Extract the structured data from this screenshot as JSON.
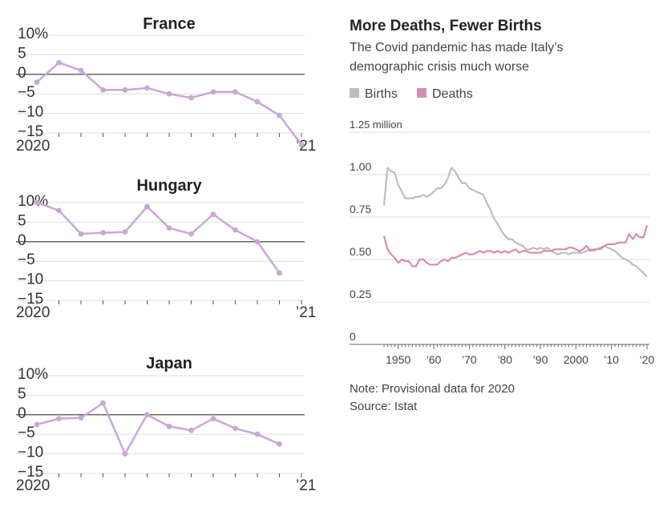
{
  "small_multiples": [
    {
      "title": "France",
      "y_ticks": [
        "10%",
        "5",
        "0",
        "−5",
        "−10",
        "−15"
      ],
      "x_start_label": "2020",
      "x_end_label": "’21"
    },
    {
      "title": "Hungary",
      "y_ticks": [
        "10%",
        "5",
        "0",
        "−5",
        "−10",
        "−15"
      ],
      "x_start_label": "2020",
      "x_end_label": "’21"
    },
    {
      "title": "Japan",
      "y_ticks": [
        "10%",
        "5",
        "0",
        "−5",
        "−10",
        "−15"
      ],
      "x_start_label": "2020",
      "x_end_label": "’21"
    }
  ],
  "main": {
    "title": "More Deaths, Fewer Births",
    "subtitle_line1": "The Covid pandemic has made Italy’s",
    "subtitle_line2": "demographic crisis much worse",
    "legend": [
      {
        "label": "Births",
        "color": "#bdbdbd"
      },
      {
        "label": "Deaths",
        "color": "#d98bb3"
      }
    ],
    "y_ticks": [
      "1.25 million",
      "1.00",
      "0.75",
      "0.50",
      "0.25",
      "0"
    ],
    "x_ticks": [
      "1950",
      "’60",
      "’70",
      "’80",
      "’90",
      "2000",
      "’10",
      "’20"
    ],
    "note": "Note: Provisional data for 2020",
    "source": "Source: Istat"
  },
  "colors": {
    "small_line": "#c9a8d8",
    "births": "#bdbdbd",
    "deaths": "#d98bb3",
    "grid": "#dddddd",
    "zero_line": "#333333"
  },
  "chart_data": [
    {
      "type": "line",
      "title": "France",
      "ylim": [
        -15,
        10
      ],
      "x_range": [
        "2020",
        "’21"
      ],
      "series": [
        {
          "values": [
            -2,
            3,
            1,
            -4,
            -4,
            -3.5,
            -5,
            -6,
            -4.5,
            -4.5,
            -7,
            -10.5,
            -18
          ]
        }
      ]
    },
    {
      "type": "line",
      "title": "Hungary",
      "ylim": [
        -15,
        10
      ],
      "x_range": [
        "2020",
        "’21"
      ],
      "series": [
        {
          "values": [
            10,
            8,
            2,
            2.3,
            2.5,
            9,
            3.5,
            2,
            7,
            3,
            0,
            -8
          ]
        }
      ]
    },
    {
      "type": "line",
      "title": "Japan",
      "ylim": [
        -15,
        10
      ],
      "x_range": [
        "2020",
        "’21"
      ],
      "series": [
        {
          "values": [
            -2.5,
            -1,
            -0.8,
            3,
            -10,
            0,
            -3,
            -4,
            -1,
            -3.5,
            -5,
            -7.5
          ]
        }
      ]
    },
    {
      "type": "line",
      "title": "More Deaths, Fewer Births",
      "subtitle": "The Covid pandemic has made Italy’s demographic crisis much worse",
      "ylim": [
        0,
        1.25
      ],
      "x_ticks": [
        1950,
        1960,
        1970,
        1980,
        1990,
        2000,
        2010,
        2020
      ],
      "series": [
        {
          "name": "Births",
          "x": [
            1946,
            1947,
            1948,
            1949,
            1950,
            1951,
            1952,
            1953,
            1954,
            1955,
            1956,
            1957,
            1958,
            1959,
            1960,
            1961,
            1962,
            1963,
            1964,
            1965,
            1966,
            1967,
            1968,
            1969,
            1970,
            1971,
            1972,
            1973,
            1974,
            1975,
            1976,
            1977,
            1978,
            1979,
            1980,
            1981,
            1982,
            1983,
            1984,
            1985,
            1986,
            1987,
            1988,
            1989,
            1990,
            1991,
            1992,
            1993,
            1994,
            1995,
            1996,
            1997,
            1998,
            1999,
            2000,
            2001,
            2002,
            2003,
            2004,
            2005,
            2006,
            2007,
            2008,
            2009,
            2010,
            2011,
            2012,
            2013,
            2014,
            2015,
            2016,
            2017,
            2018,
            2019,
            2020
          ],
          "values": [
            0.82,
            1.04,
            1.02,
            1.01,
            0.94,
            0.9,
            0.86,
            0.86,
            0.86,
            0.87,
            0.87,
            0.88,
            0.87,
            0.88,
            0.9,
            0.92,
            0.92,
            0.94,
            0.98,
            1.04,
            1.02,
            0.98,
            0.95,
            0.95,
            0.92,
            0.91,
            0.9,
            0.89,
            0.88,
            0.83,
            0.79,
            0.74,
            0.71,
            0.67,
            0.64,
            0.62,
            0.62,
            0.6,
            0.59,
            0.58,
            0.56,
            0.56,
            0.57,
            0.56,
            0.57,
            0.56,
            0.57,
            0.55,
            0.54,
            0.53,
            0.54,
            0.54,
            0.53,
            0.54,
            0.54,
            0.54,
            0.54,
            0.55,
            0.56,
            0.55,
            0.56,
            0.56,
            0.58,
            0.57,
            0.56,
            0.55,
            0.53,
            0.51,
            0.5,
            0.49,
            0.47,
            0.46,
            0.44,
            0.42,
            0.4
          ]
        },
        {
          "name": "Deaths",
          "x": [
            1946,
            1947,
            1948,
            1949,
            1950,
            1951,
            1952,
            1953,
            1954,
            1955,
            1956,
            1957,
            1958,
            1959,
            1960,
            1961,
            1962,
            1963,
            1964,
            1965,
            1966,
            1967,
            1968,
            1969,
            1970,
            1971,
            1972,
            1973,
            1974,
            1975,
            1976,
            1977,
            1978,
            1979,
            1980,
            1981,
            1982,
            1983,
            1984,
            1985,
            1986,
            1987,
            1988,
            1989,
            1990,
            1991,
            1992,
            1993,
            1994,
            1995,
            1996,
            1997,
            1998,
            1999,
            2000,
            2001,
            2002,
            2003,
            2004,
            2005,
            2006,
            2007,
            2008,
            2009,
            2010,
            2011,
            2012,
            2013,
            2014,
            2015,
            2016,
            2017,
            2018,
            2019,
            2020
          ],
          "values": [
            0.64,
            0.56,
            0.53,
            0.51,
            0.48,
            0.5,
            0.49,
            0.49,
            0.46,
            0.46,
            0.5,
            0.5,
            0.48,
            0.47,
            0.47,
            0.47,
            0.49,
            0.5,
            0.49,
            0.51,
            0.51,
            0.52,
            0.53,
            0.54,
            0.53,
            0.53,
            0.54,
            0.55,
            0.54,
            0.55,
            0.55,
            0.54,
            0.55,
            0.54,
            0.55,
            0.54,
            0.55,
            0.56,
            0.54,
            0.55,
            0.55,
            0.54,
            0.54,
            0.54,
            0.54,
            0.55,
            0.55,
            0.55,
            0.56,
            0.56,
            0.56,
            0.56,
            0.57,
            0.57,
            0.56,
            0.55,
            0.56,
            0.58,
            0.55,
            0.56,
            0.56,
            0.57,
            0.58,
            0.59,
            0.59,
            0.59,
            0.6,
            0.6,
            0.6,
            0.65,
            0.62,
            0.65,
            0.63,
            0.63,
            0.7
          ]
        }
      ]
    }
  ]
}
